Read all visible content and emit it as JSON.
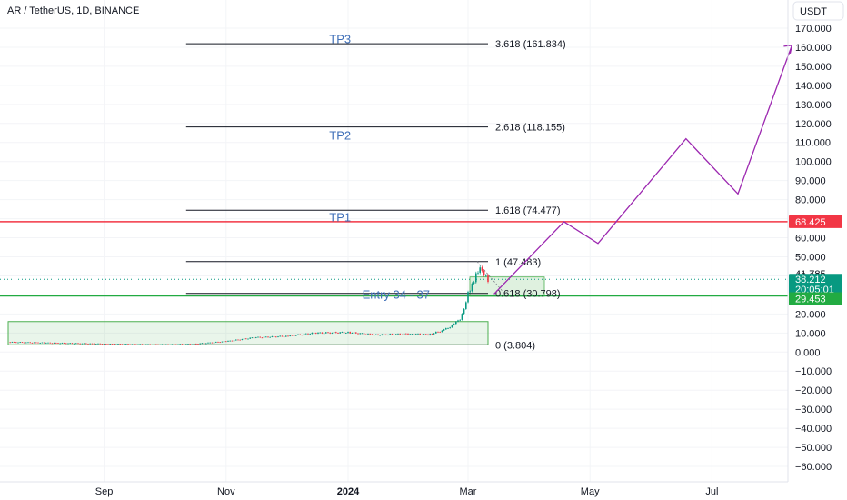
{
  "symbol_title": "AR / TetherUS, 1D, BINANCE",
  "currency_button": "USDT",
  "price_badges": {
    "resistance": {
      "value": "68.425",
      "color": "#f23645"
    },
    "current": {
      "value": "38.212",
      "countdown": "20:05:01",
      "color": "#089981"
    },
    "support": {
      "value": "29.453",
      "color": "#22ab42"
    },
    "last_label": "41.785"
  },
  "chart_data": {
    "type": "line",
    "title": "AR / TetherUS, 1D, BINANCE",
    "y_axis_unit": "USDT",
    "ylim": [
      -65,
      175
    ],
    "y_ticks": [
      170,
      160,
      150,
      140,
      130,
      120,
      110,
      100,
      90,
      80,
      70,
      60,
      50,
      40,
      30,
      20,
      10,
      0,
      -10,
      -20,
      -30,
      -40,
      -50,
      -60
    ],
    "x_tick_labels": [
      {
        "label": "Sep",
        "date": "2023-09-01",
        "bold": false
      },
      {
        "label": "Nov",
        "date": "2023-11-01",
        "bold": false
      },
      {
        "label": "2024",
        "date": "2024-01-01",
        "bold": true
      },
      {
        "label": "Mar",
        "date": "2024-03-01",
        "bold": false
      },
      {
        "label": "May",
        "date": "2024-05-01",
        "bold": false
      },
      {
        "label": "Jul",
        "date": "2024-07-01",
        "bold": false
      }
    ],
    "price_series": [
      {
        "date": "2023-07-15",
        "close": 5.2
      },
      {
        "date": "2023-08-01",
        "close": 4.9
      },
      {
        "date": "2023-08-15",
        "close": 4.6
      },
      {
        "date": "2023-09-01",
        "close": 4.3
      },
      {
        "date": "2023-09-15",
        "close": 4.1
      },
      {
        "date": "2023-10-01",
        "close": 4.0
      },
      {
        "date": "2023-10-15",
        "close": 4.2
      },
      {
        "date": "2023-11-01",
        "close": 5.6
      },
      {
        "date": "2023-11-15",
        "close": 7.6
      },
      {
        "date": "2023-12-01",
        "close": 8.3
      },
      {
        "date": "2023-12-15",
        "close": 10.0
      },
      {
        "date": "2024-01-01",
        "close": 10.3
      },
      {
        "date": "2024-01-15",
        "close": 9.0
      },
      {
        "date": "2024-02-01",
        "close": 9.6
      },
      {
        "date": "2024-02-10",
        "close": 9.1
      },
      {
        "date": "2024-02-18",
        "close": 11.5
      },
      {
        "date": "2024-02-23",
        "close": 14.5
      },
      {
        "date": "2024-02-26",
        "close": 17.5
      },
      {
        "date": "2024-02-28",
        "close": 22.0
      },
      {
        "date": "2024-03-01",
        "close": 30.5
      },
      {
        "date": "2024-03-03",
        "close": 35.0
      },
      {
        "date": "2024-03-05",
        "close": 41.0
      },
      {
        "date": "2024-03-07",
        "close": 45.0
      },
      {
        "date": "2024-03-09",
        "close": 41.5
      },
      {
        "date": "2024-03-11",
        "close": 38.2
      }
    ],
    "projection_path": [
      {
        "date": "2024-03-14",
        "price": 30.5
      },
      {
        "date": "2024-04-18",
        "price": 68.4
      },
      {
        "date": "2024-05-05",
        "price": 57.0
      },
      {
        "date": "2024-06-18",
        "price": 112.0
      },
      {
        "date": "2024-07-14",
        "price": 83.0
      },
      {
        "date": "2024-08-10",
        "price": 161.0
      }
    ],
    "fib_levels": [
      {
        "ratio": "3.618",
        "value": 161.834,
        "label": "3.618 (161.834)"
      },
      {
        "ratio": "2.618",
        "value": 118.155,
        "label": "2.618 (118.155)"
      },
      {
        "ratio": "1.618",
        "value": 74.477,
        "label": "1.618 (74.477)"
      },
      {
        "ratio": "1",
        "value": 47.483,
        "label": "1 (47.483)"
      },
      {
        "ratio": "0.618",
        "value": 30.798,
        "label": "0.618 (30.798)"
      },
      {
        "ratio": "0",
        "value": 3.804,
        "label": "0 (3.804)"
      }
    ],
    "fib_range": {
      "start": "2023-10-12",
      "end": "2024-03-11"
    },
    "annotations": [
      {
        "text": "TP3",
        "date": "2023-12-28",
        "price": 164.0
      },
      {
        "text": "TP2",
        "date": "2023-12-28",
        "price": 113.5
      },
      {
        "text": "TP1",
        "date": "2023-12-28",
        "price": 70.5
      },
      {
        "text": "Entry 34 - 37",
        "date": "2024-01-25",
        "price": 30.0
      }
    ],
    "horizontal_lines": [
      {
        "price": 68.425,
        "color": "#f23645"
      },
      {
        "price": 29.453,
        "color": "#22ab42"
      },
      {
        "price": 38.212,
        "color": "#089981",
        "dotted": true
      }
    ],
    "accumulation_box": {
      "from": "2023-07-15",
      "to": "2024-03-11",
      "low": 3.804,
      "high": 16.0
    }
  }
}
